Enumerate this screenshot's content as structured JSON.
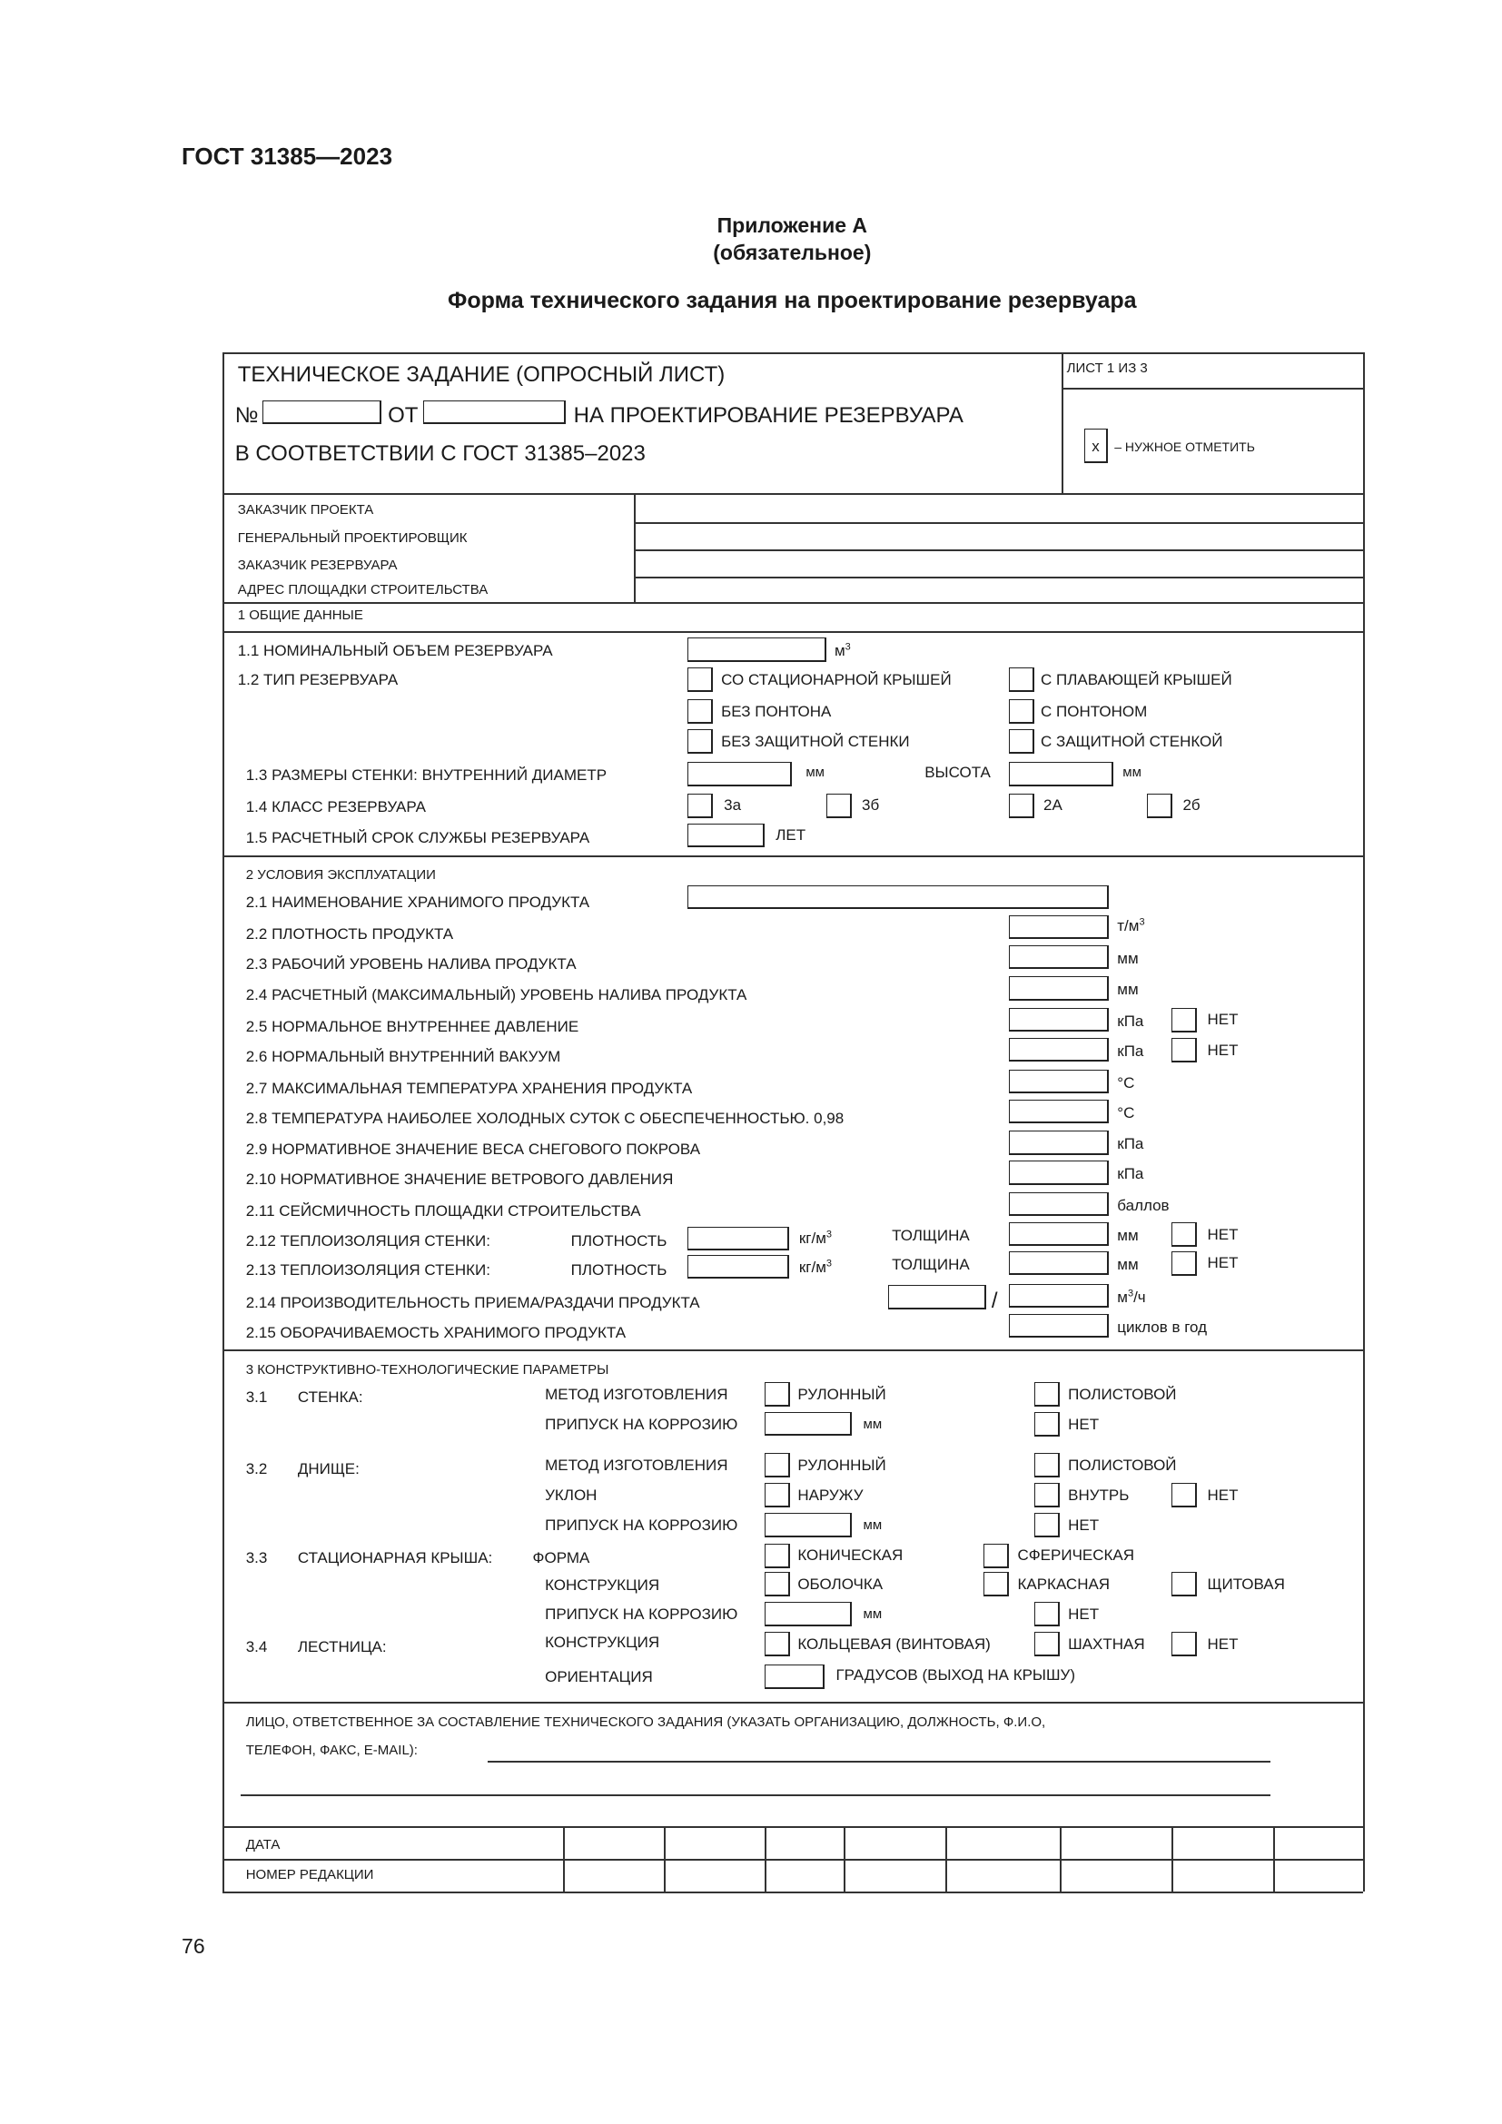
{
  "doc_header": "ГОСТ 31385—2023",
  "appendix": {
    "title": "Приложение А",
    "status": "(обязательное)",
    "heading": "Форма технического задания на проектирование резервуара"
  },
  "form": {
    "title": "ТЕХНИЧЕСКОЕ ЗАДАНИЕ  (ОПРОСНЫЙ ЛИСТ)",
    "number_label": "№",
    "from_label": "ОТ",
    "purpose": "НА ПРОЕКТИРОВАНИЕ РЕЗЕРВУАРА",
    "compliance": "В СООТВЕТСТВИИ С ГОСТ 31385–2023",
    "sheet": "ЛИСТ 1 ИЗ 3",
    "mark_symbol": "х",
    "mark_hint": "– НУЖНОЕ ОТМЕТИТЬ",
    "parties": [
      "ЗАКАЗЧИК ПРОЕКТА",
      "ГЕНЕРАЛЬНЫЙ ПРОЕКТИРОВЩИК",
      "ЗАКАЗЧИК РЕЗЕРВУАРА",
      "АДРЕС ПЛОЩАДКИ СТРОИТЕЛЬСТВА"
    ],
    "s1": {
      "title": "1 ОБЩИЕ ДАННЫЕ",
      "r1": "1.1  НОМИНАЛЬНЫЙ ОБЪЕМ РЕЗЕРВУАРА",
      "r1_unit": "м",
      "sup3": "3",
      "r2": "1.2  ТИП РЕЗЕРВУАРА",
      "r2_opts": [
        "СО СТАЦИОНАРНОЙ КРЫШЕЙ",
        "С ПЛАВАЮЩЕЙ КРЫШЕЙ",
        "БЕЗ ПОНТОНА",
        "С ПОНТОНОМ",
        "БЕЗ ЗАЩИТНОЙ СТЕНКИ",
        "С ЗАЩИТНОЙ СТЕНКОЙ"
      ],
      "r3": "1.3  РАЗМЕРЫ СТЕНКИ: ВНУТРЕННИЙ ДИАМЕТР",
      "mm": "мм",
      "height": "ВЫСОТА",
      "r4": "1.4  КЛАСС РЕЗЕРВУАРА",
      "r4_opts": [
        "3а",
        "3б",
        "2А",
        "2б"
      ],
      "r5": "1.5  РАСЧЕТНЫЙ СРОК СЛУЖБЫ РЕЗЕРВУАРА",
      "r5_unit": "ЛЕТ"
    },
    "s2": {
      "title": "2 УСЛОВИЯ ЭКСПЛУАТАЦИИ",
      "r1": "2.1  НАИМЕНОВАНИЕ ХРАНИМОГО ПРОДУКТА",
      "rows": [
        {
          "label": "2.2  ПЛОТНОСТЬ ПРОДУКТА",
          "unit": "т/м"
        },
        {
          "label": "2.3  РАБОЧИЙ УРОВЕНЬ НАЛИВА ПРОДУКТА",
          "unit": "мм"
        },
        {
          "label": "2.4  РАСЧЕТНЫЙ (МАКСИМАЛЬНЫЙ) УРОВЕНЬ НАЛИВА ПРОДУКТА",
          "unit": "мм"
        },
        {
          "label": "2.5  НОРМАЛЬНОЕ ВНУТРЕННЕЕ ДАВЛЕНИЕ",
          "unit": "кПа"
        },
        {
          "label": "2.6  НОРМАЛЬНЫЙ ВНУТРЕННИЙ ВАКУУМ",
          "unit": "кПа"
        },
        {
          "label": "2.7  МАКСИМАЛЬНАЯ ТЕМПЕРАТУРА ХРАНЕНИЯ ПРОДУКТА",
          "unit": "°С"
        },
        {
          "label": "2.8  ТЕМПЕРАТУРА НАИБОЛЕЕ ХОЛОДНЫХ СУТОК С ОБЕСПЕЧЕННОСТЬЮ. 0,98",
          "unit": "°С"
        },
        {
          "label": "2.9  НОРМАТИВНОЕ ЗНАЧЕНИЕ ВЕСА СНЕГОВОГО ПОКРОВА",
          "unit": "кПа"
        },
        {
          "label": "2.10  НОРМАТИВНОЕ ЗНАЧЕНИЕ ВЕТРОВОГО ДАВЛЕНИЯ",
          "unit": "кПа"
        },
        {
          "label": "2.11  СЕЙСМИЧНОСТЬ ПЛОЩАДКИ СТРОИТЕЛЬСТВА",
          "unit": "баллов"
        },
        {
          "label": "2.12  ТЕПЛОИЗОЛЯЦИЯ СТЕНКИ:",
          "unit": "мм"
        },
        {
          "label": "2.13  ТЕПЛОИЗОЛЯЦИЯ СТЕНКИ:",
          "unit": "мм"
        },
        {
          "label": "2.14  ПРОИЗВОДИТЕЛЬНОСТЬ ПРИЕМА/РАЗДАЧИ ПРОДУКТА",
          "unit": "м",
          "unit_tail": "/ч"
        },
        {
          "label": "2.15  ОБОРАЧИВАЕМОСТЬ ХРАНИМОГО ПРОДУКТА",
          "unit": "циклов в год"
        }
      ],
      "no": "НЕТ",
      "density": "ПЛОТНОСТЬ",
      "density_unit": "кг/м",
      "thickness": "ТОЛЩИНА",
      "slash": "/"
    },
    "s3": {
      "title": "3 КОНСТРУКТИВНО-ТЕХНОЛОГИЧЕСКИЕ ПАРАМЕТРЫ",
      "n1": "3.1",
      "wall": "СТЕНКА:",
      "n2": "3.2",
      "bottom": "ДНИЩЕ:",
      "n3": "3.3",
      "roof": "СТАЦИОНАРНАЯ КРЫША:",
      "n4": "3.4",
      "ladder": "ЛЕСТНИЦА:",
      "method": "МЕТОД ИЗГОТОВЛЕНИЯ",
      "corrosion": "ПРИПУСК НА КОРРОЗИЮ",
      "slope": "УКЛОН",
      "shape": "ФОРМА",
      "construction": "КОНСТРУКЦИЯ",
      "orientation": "ОРИЕНТАЦИЯ",
      "rolled": "РУЛОННЫЙ",
      "sheet": "ПОЛИСТОВОЙ",
      "no": "НЕТ",
      "mm": "мм",
      "outward": "НАРУЖУ",
      "inward": "ВНУТРЬ",
      "conical": "КОНИЧЕСКАЯ",
      "spherical": "СФЕРИЧЕСКАЯ",
      "shell": "ОБОЛОЧКА",
      "frame": "КАРКАСНАЯ",
      "panel": "ЩИТОВАЯ",
      "spiral": "КОЛЬЦЕВАЯ (ВИНТОВАЯ)",
      "shaft": "ШАХТНАЯ",
      "degrees": "ГРАДУСОВ (ВЫХОД НА КРЫШУ)"
    },
    "responsible": {
      "line1": "ЛИЦО, ОТВЕТСТВЕННОЕ ЗА СОСТАВЛЕНИЕ ТЕХНИЧЕСКОГО ЗАДАНИЯ (УКАЗАТЬ ОРГАНИЗАЦИЮ, ДОЛЖНОСТЬ, Ф.И.О,",
      "line2": "ТЕЛЕФОН, ФАКС, E-MAIL):"
    },
    "revision": {
      "date": "ДАТА",
      "number": "НОМЕР РЕДАКЦИИ"
    }
  },
  "page_number": "76"
}
